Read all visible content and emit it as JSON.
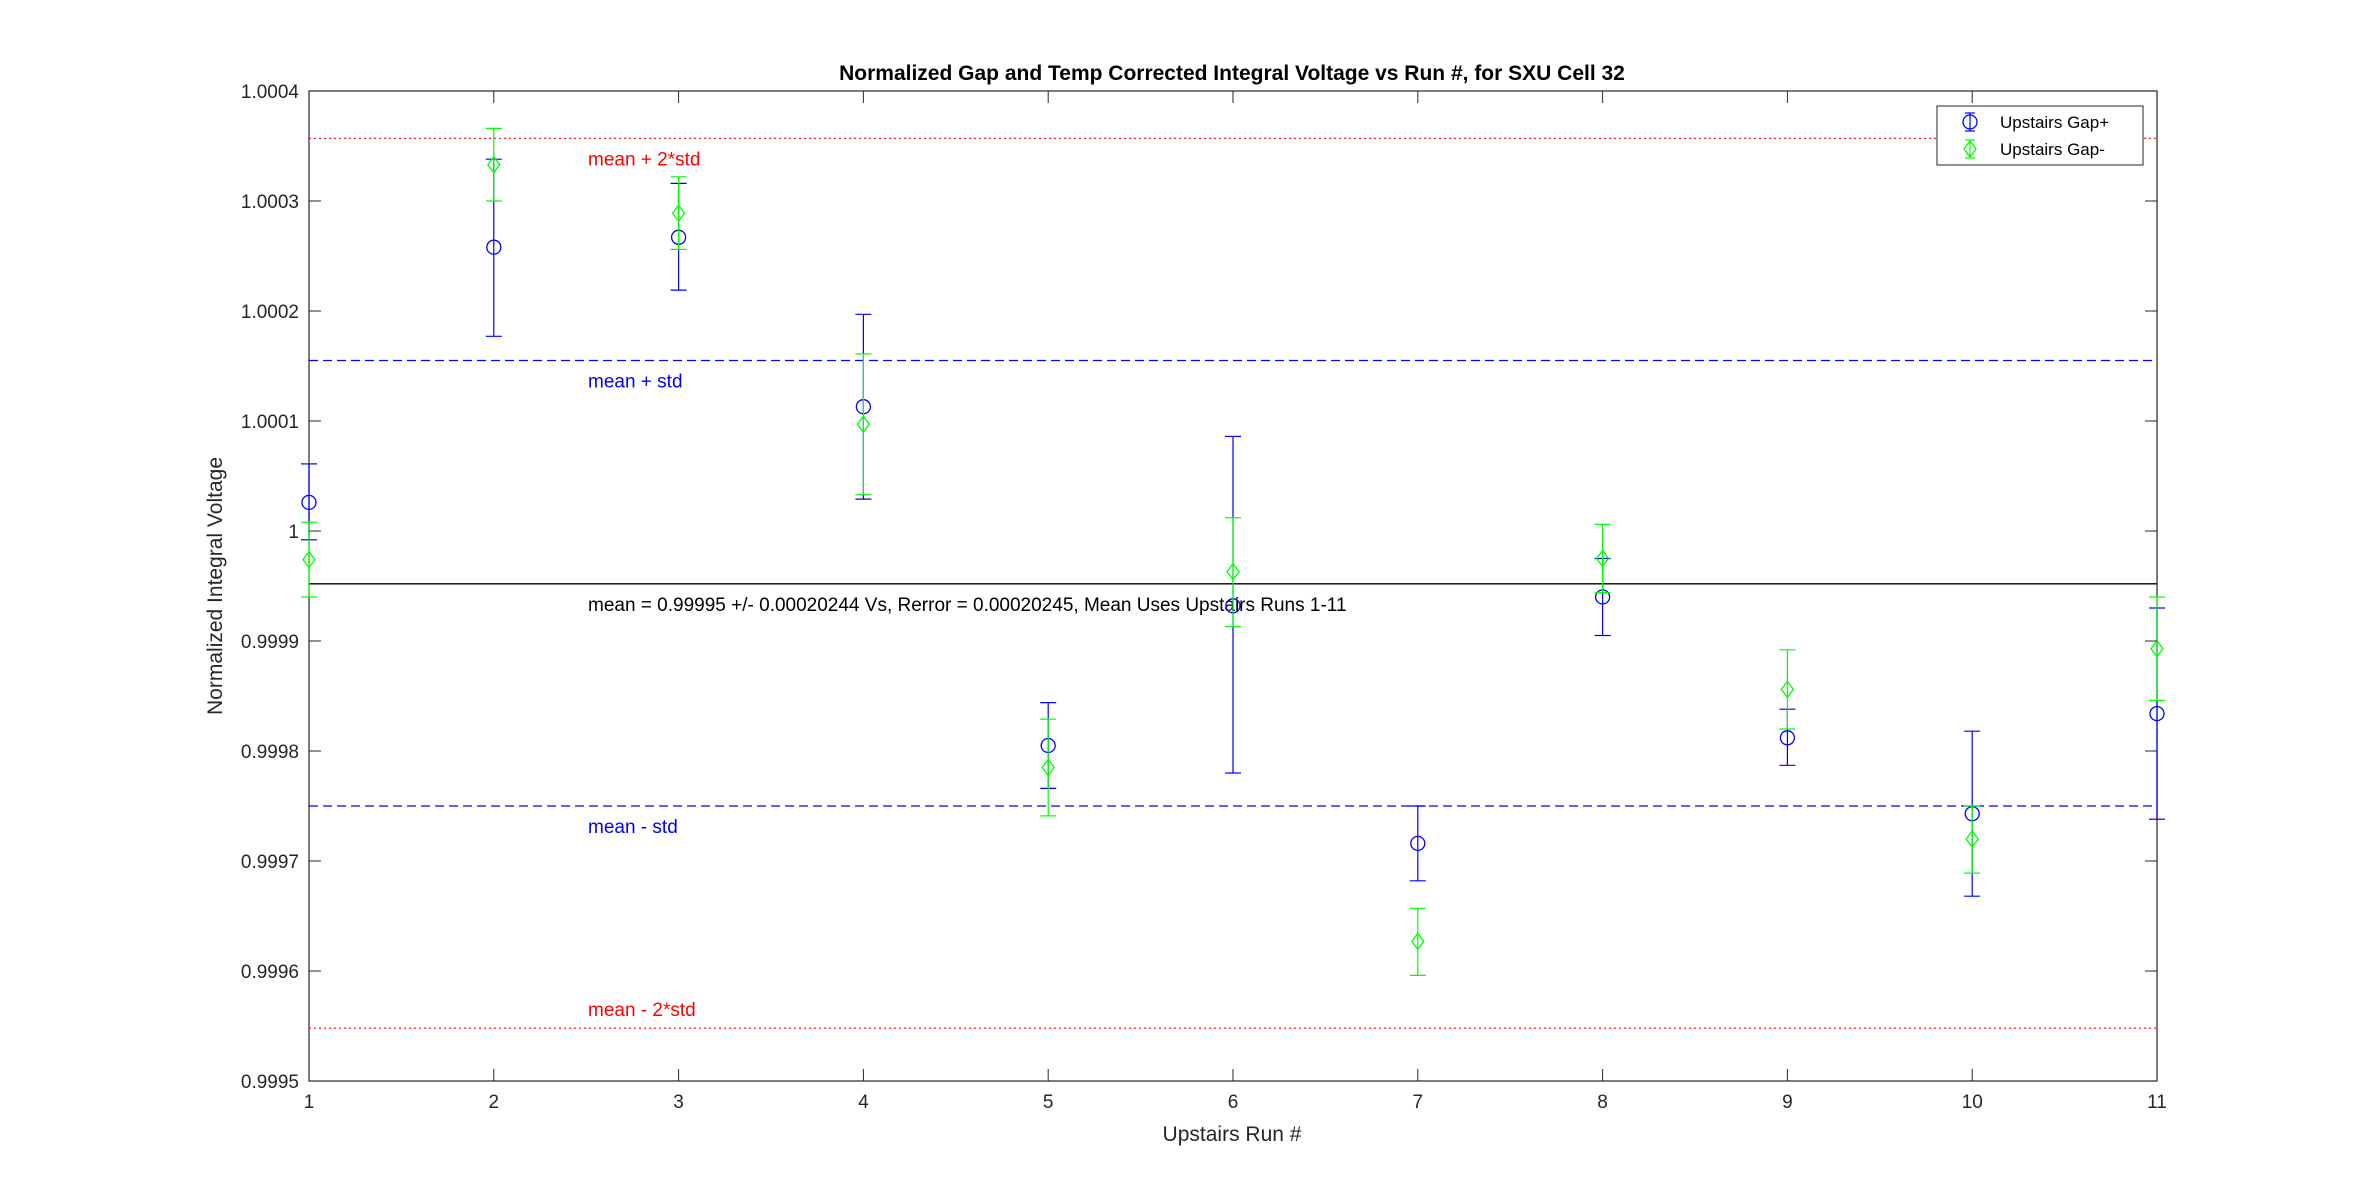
{
  "chart_data": {
    "type": "scatter",
    "title": "Normalized Gap and Temp Corrected Integral Voltage vs Run #, for SXU Cell 32",
    "xlabel": "Upstairs Run #",
    "ylabel": "Normalized Integral Voltage",
    "xlim": [
      1,
      11
    ],
    "ylim": [
      0.9995,
      1.0004
    ],
    "xticks": [
      1,
      2,
      3,
      4,
      5,
      6,
      7,
      8,
      9,
      10,
      11
    ],
    "xtick_labels": [
      "1",
      "2",
      "3",
      "4",
      "5",
      "6",
      "7",
      "8",
      "9",
      "10",
      "11"
    ],
    "yticks": [
      0.9995,
      0.9996,
      0.9997,
      0.9998,
      0.9999,
      1.0,
      1.0001,
      1.0002,
      1.0003,
      1.0004
    ],
    "ytick_labels": [
      "0.9995",
      "0.9996",
      "0.9997",
      "0.9998",
      "0.9999",
      "1",
      "1.0001",
      "1.0002",
      "1.0003",
      "1.0004"
    ],
    "grid": false,
    "legend_position": "top-right",
    "series": [
      {
        "name": "Upstairs Gap+",
        "marker": "circle",
        "color": "#0000ff",
        "x": [
          1,
          2,
          3,
          4,
          5,
          6,
          7,
          8,
          9,
          10,
          11
        ],
        "y": [
          1.000026,
          1.000258,
          1.000267,
          1.000113,
          0.999805,
          0.999932,
          0.999716,
          0.99994,
          0.999812,
          0.999743,
          0.999834
        ],
        "err_low": [
          0.999992,
          1.000177,
          1.000219,
          1.000029,
          0.999766,
          0.99978,
          0.999682,
          0.999905,
          0.999787,
          0.999668,
          0.999738
        ],
        "err_high": [
          1.000061,
          1.000338,
          1.000316,
          1.000197,
          0.999844,
          1.000086,
          0.99975,
          0.999975,
          0.999838,
          0.999818,
          0.99993
        ]
      },
      {
        "name": "Upstairs Gap-",
        "marker": "diamond",
        "color": "#00ff00",
        "x": [
          1,
          2,
          3,
          4,
          5,
          6,
          7,
          8,
          9,
          10,
          11
        ],
        "y": [
          0.999974,
          1.000333,
          1.000289,
          1.000097,
          0.999785,
          0.999963,
          0.999627,
          0.999975,
          0.999856,
          0.99972,
          0.999893
        ],
        "err_low": [
          0.99994,
          1.0003,
          1.000256,
          1.000033,
          0.999741,
          0.999913,
          0.999596,
          0.999944,
          0.99982,
          0.999689,
          0.999846
        ],
        "err_high": [
          1.000008,
          1.000366,
          1.000322,
          1.000161,
          0.999829,
          1.000012,
          0.999657,
          1.000006,
          0.999892,
          0.99975,
          0.99994
        ]
      }
    ],
    "reference_lines": [
      {
        "y": 1.000357,
        "style": "dotted",
        "color": "#ff0000",
        "label": "mean + 2*std"
      },
      {
        "y": 1.000155,
        "style": "dashed",
        "color": "#0000ff",
        "label": "mean + std"
      },
      {
        "y": 0.999952,
        "style": "solid",
        "color": "#000000",
        "label": "mean = 0.99995 +/- 0.00020244 Vs, Rerror = 0.00020245, Mean Uses Upstairs Runs 1-11"
      },
      {
        "y": 0.99975,
        "style": "dashed",
        "color": "#0000ff",
        "label": "mean - std"
      },
      {
        "y": 0.999548,
        "style": "dotted",
        "color": "#ff0000",
        "label": "mean - 2*std"
      }
    ]
  }
}
